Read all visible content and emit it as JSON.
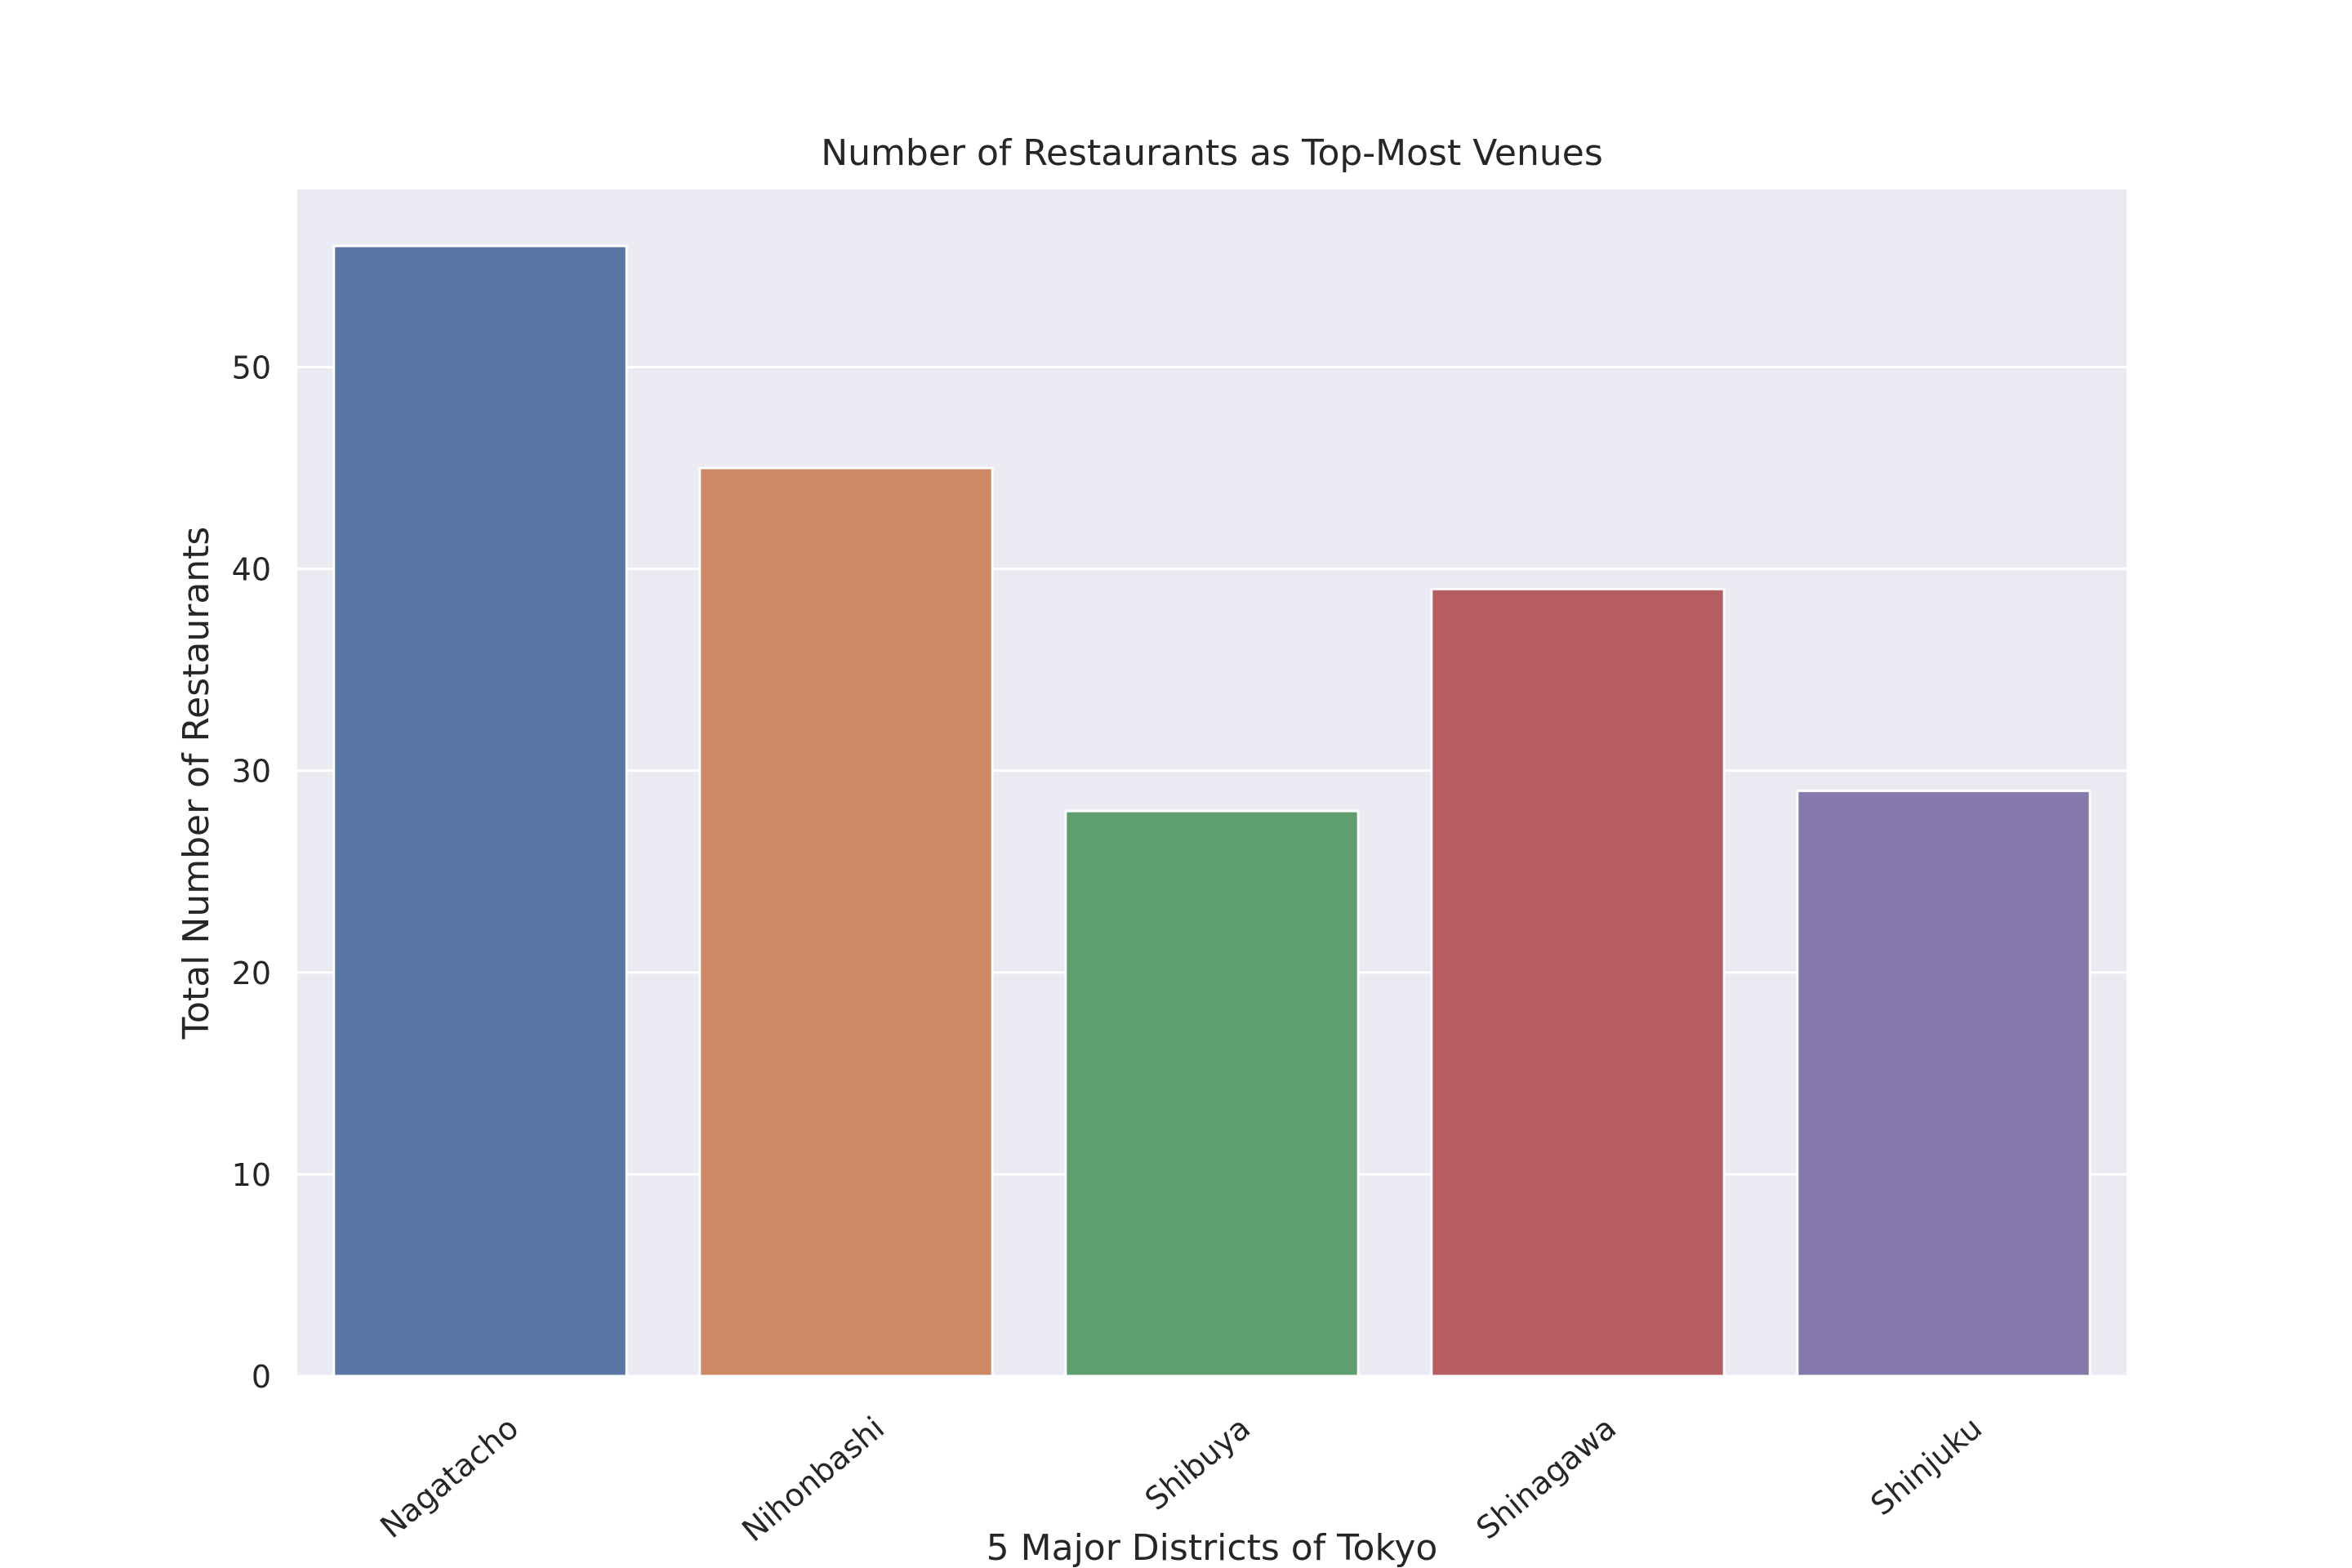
{
  "chart_data": {
    "type": "bar",
    "title": "Number of Restaurants as Top-Most Venues",
    "xlabel": "5 Major Districts of Tokyo",
    "ylabel": "Total Number of Restaurants",
    "categories": [
      "Nagatacho",
      "Nihonbashi",
      "Shibuya",
      "Shinagawa",
      "Shinjuku"
    ],
    "values": [
      56,
      45,
      28,
      39,
      29
    ],
    "colors": [
      "#5875a4",
      "#cc8963",
      "#5f9e6e",
      "#b55d60",
      "#857aab"
    ],
    "ylim": [
      0,
      58.8
    ],
    "yticks": [
      0,
      10,
      20,
      30,
      40,
      50
    ],
    "grid": true,
    "background_color": "#eaeaf2",
    "gridline_color": "#ffffff"
  }
}
